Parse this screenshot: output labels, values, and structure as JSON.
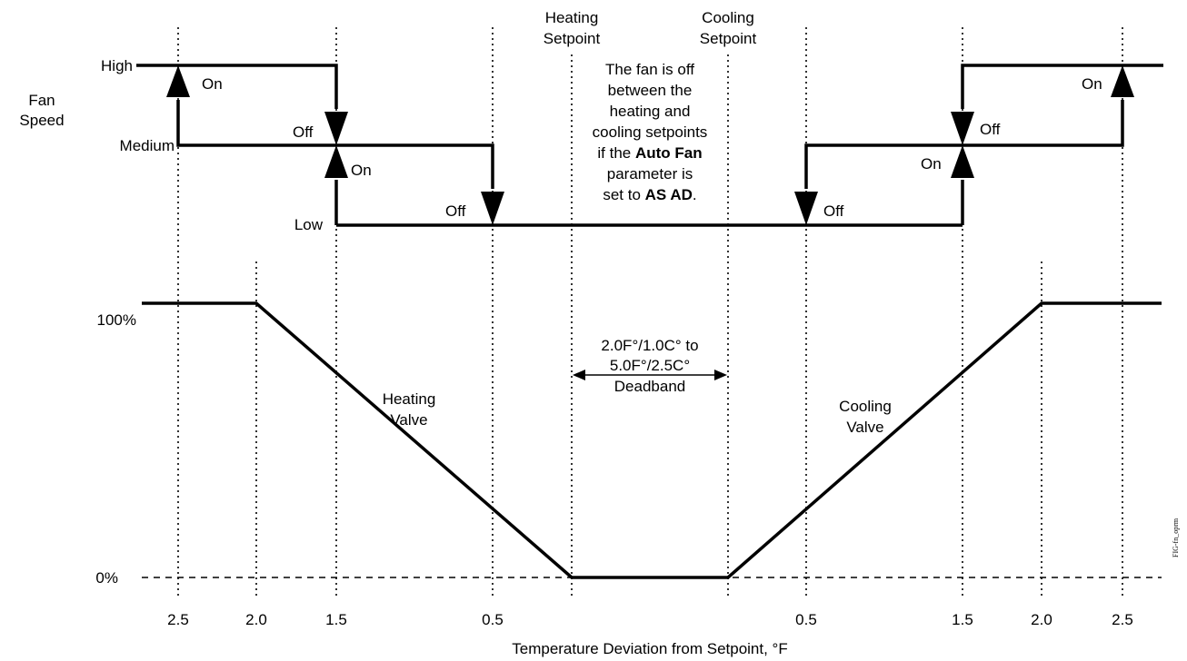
{
  "y_axis": {
    "fan_speed_label": [
      "Fan",
      "Speed"
    ],
    "speed_levels": {
      "high": "High",
      "medium": "Medium",
      "low": "Low"
    },
    "valve_levels": {
      "max": "100%",
      "min": "0%"
    }
  },
  "x_axis": {
    "title": "Temperature Deviation from Setpoint, °F",
    "ticks": [
      "2.5",
      "2.0",
      "1.5",
      "0.5",
      "0.5",
      "1.5",
      "2.0",
      "2.5"
    ]
  },
  "setpoints": {
    "heating": [
      "Heating",
      "Setpoint"
    ],
    "cooling": [
      "Cooling",
      "Setpoint"
    ]
  },
  "fan_note": {
    "line1": "The fan is off",
    "line2": "between the",
    "line3": "heating and",
    "line4": "cooling setpoints",
    "line5_prefix": "if the ",
    "line5_bold": "Auto Fan",
    "line6": "parameter is",
    "line7_prefix": "set to ",
    "line7_bold": "AS AD",
    "line7_suffix": "."
  },
  "state_labels": {
    "on": "On",
    "off": "Off"
  },
  "deadband": [
    "2.0F°/1.0C° to",
    "5.0F°/2.5C°",
    "Deadband"
  ],
  "valves": {
    "heating": [
      "Heating",
      "Valve"
    ],
    "cooling": [
      "Cooling",
      "Valve"
    ]
  },
  "figure_code": "FIG-fn_oprm"
}
